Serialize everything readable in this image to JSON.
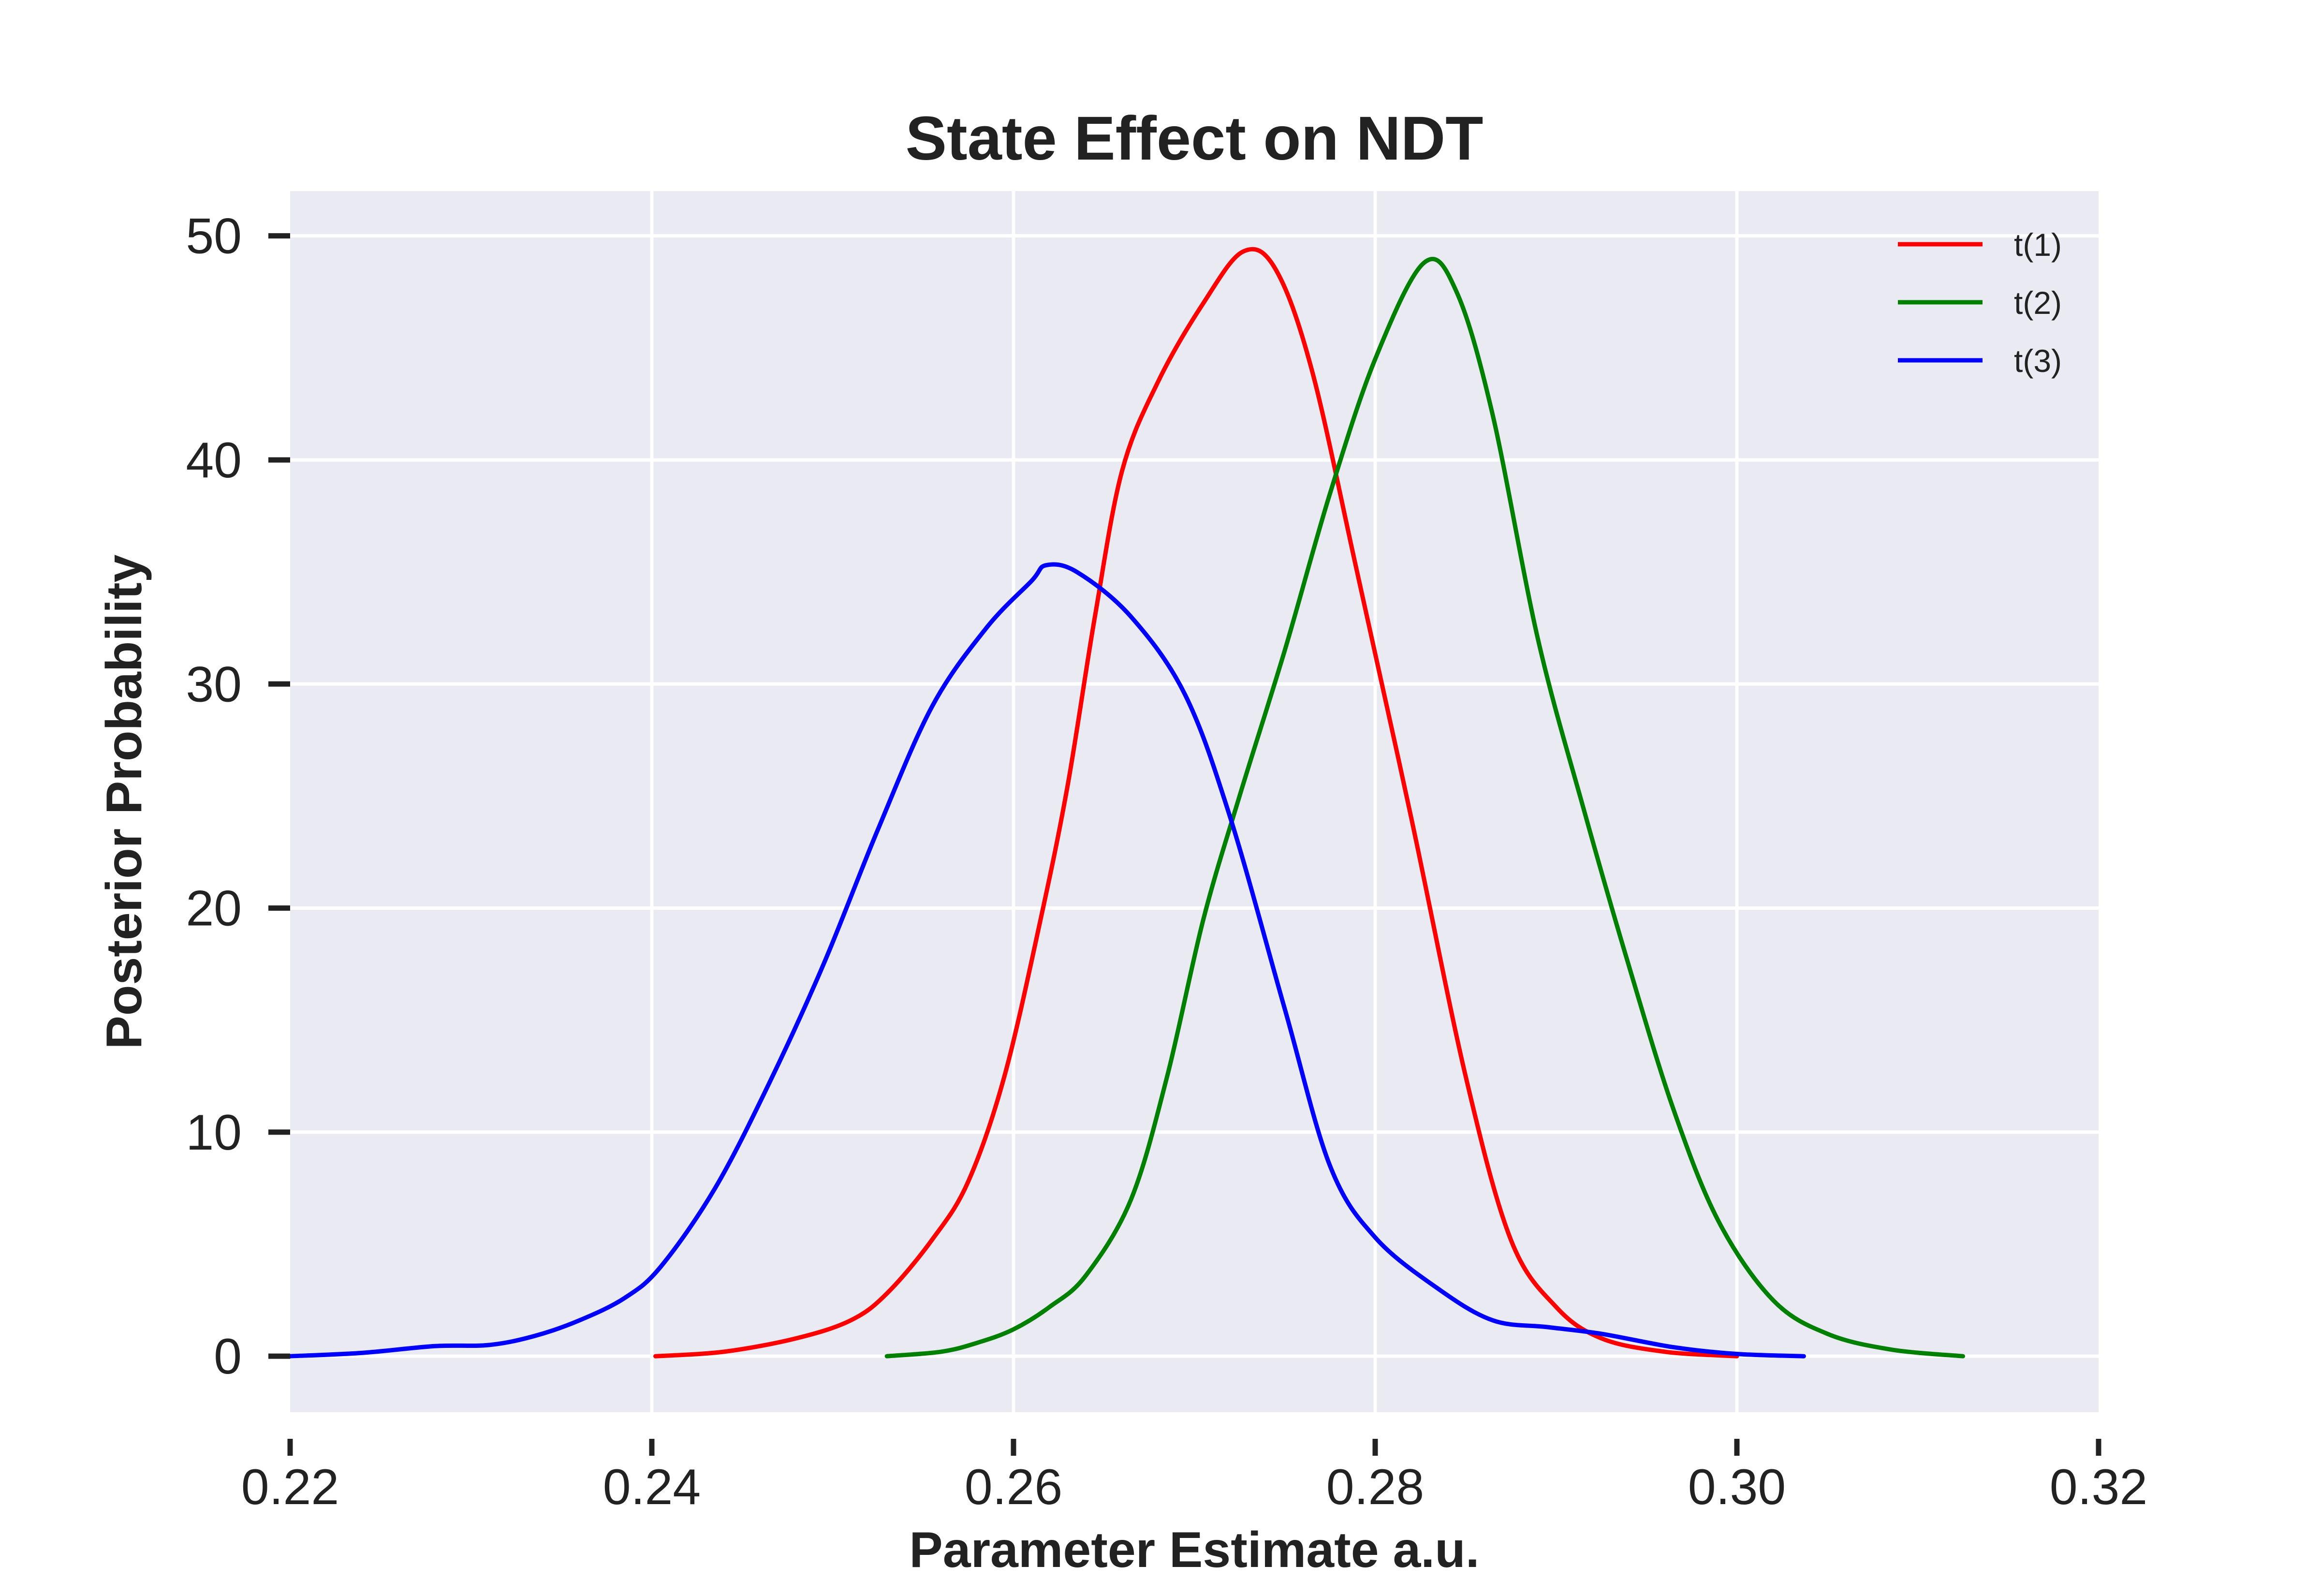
{
  "chart_data": {
    "type": "line",
    "title": "State Effect on NDT",
    "xlabel": "Parameter Estimate a.u.",
    "ylabel": "Posterior Probability",
    "xlim": [
      0.22,
      0.32
    ],
    "ylim": [
      -2.5,
      52
    ],
    "xticks": [
      0.22,
      0.24,
      0.26,
      0.28,
      0.3,
      0.32
    ],
    "xtick_labels": [
      "0.22",
      "0.24",
      "0.26",
      "0.28",
      "0.30",
      "0.32"
    ],
    "yticks": [
      0,
      10,
      20,
      30,
      40,
      50
    ],
    "ytick_labels": [
      "0",
      "10",
      "20",
      "30",
      "40",
      "50"
    ],
    "grid": true,
    "background": "#eaeaf2",
    "legend_position": "top-right",
    "series": [
      {
        "name": "t(1)",
        "color": "#ff0000",
        "points": [
          [
            0.2402,
            0.0
          ],
          [
            0.244,
            0.2
          ],
          [
            0.248,
            0.8
          ],
          [
            0.251,
            1.6
          ],
          [
            0.253,
            2.8
          ],
          [
            0.2555,
            5.2
          ],
          [
            0.2575,
            7.8
          ],
          [
            0.2595,
            12.5
          ],
          [
            0.2615,
            19.5
          ],
          [
            0.263,
            25.5
          ],
          [
            0.2645,
            33.0
          ],
          [
            0.266,
            39.5
          ],
          [
            0.268,
            43.5
          ],
          [
            0.2705,
            47.0
          ],
          [
            0.2727,
            49.3
          ],
          [
            0.2745,
            48.5
          ],
          [
            0.2765,
            44.0
          ],
          [
            0.279,
            35.0
          ],
          [
            0.282,
            24.0
          ],
          [
            0.285,
            12.5
          ],
          [
            0.2875,
            5.2
          ],
          [
            0.29,
            2.2
          ],
          [
            0.2925,
            0.8
          ],
          [
            0.296,
            0.2
          ],
          [
            0.3,
            0.0
          ]
        ]
      },
      {
        "name": "t(2)",
        "color": "#008000",
        "points": [
          [
            0.253,
            0.0
          ],
          [
            0.256,
            0.2
          ],
          [
            0.258,
            0.6
          ],
          [
            0.26,
            1.2
          ],
          [
            0.262,
            2.2
          ],
          [
            0.264,
            3.6
          ],
          [
            0.2665,
            7.0
          ],
          [
            0.2685,
            12.5
          ],
          [
            0.2705,
            19.5
          ],
          [
            0.2725,
            25.0
          ],
          [
            0.275,
            31.5
          ],
          [
            0.2775,
            38.5
          ],
          [
            0.28,
            44.5
          ],
          [
            0.2827,
            48.8
          ],
          [
            0.2845,
            47.5
          ],
          [
            0.2865,
            42.0
          ],
          [
            0.289,
            32.0
          ],
          [
            0.2915,
            24.5
          ],
          [
            0.294,
            17.5
          ],
          [
            0.2965,
            11.0
          ],
          [
            0.299,
            6.0
          ],
          [
            0.302,
            2.5
          ],
          [
            0.305,
            1.0
          ],
          [
            0.3085,
            0.3
          ],
          [
            0.3125,
            0.0
          ]
        ]
      },
      {
        "name": "t(3)",
        "color": "#0000ff",
        "points": [
          [
            0.22,
            0.0
          ],
          [
            0.224,
            0.15
          ],
          [
            0.228,
            0.45
          ],
          [
            0.231,
            0.5
          ],
          [
            0.2335,
            0.9
          ],
          [
            0.236,
            1.6
          ],
          [
            0.2385,
            2.6
          ],
          [
            0.2405,
            4.0
          ],
          [
            0.2435,
            7.5
          ],
          [
            0.2465,
            12.2
          ],
          [
            0.2495,
            17.5
          ],
          [
            0.2525,
            23.5
          ],
          [
            0.2555,
            29.0
          ],
          [
            0.2585,
            32.5
          ],
          [
            0.261,
            34.6
          ],
          [
            0.2618,
            35.3
          ],
          [
            0.2635,
            35.0
          ],
          [
            0.2665,
            33.0
          ],
          [
            0.2695,
            29.5
          ],
          [
            0.272,
            24.0
          ],
          [
            0.275,
            15.5
          ],
          [
            0.2775,
            8.5
          ],
          [
            0.28,
            5.3
          ],
          [
            0.2835,
            3.0
          ],
          [
            0.2865,
            1.6
          ],
          [
            0.2895,
            1.3
          ],
          [
            0.2925,
            1.0
          ],
          [
            0.2965,
            0.4
          ],
          [
            0.3,
            0.1
          ],
          [
            0.3037,
            0.0
          ]
        ]
      }
    ]
  }
}
